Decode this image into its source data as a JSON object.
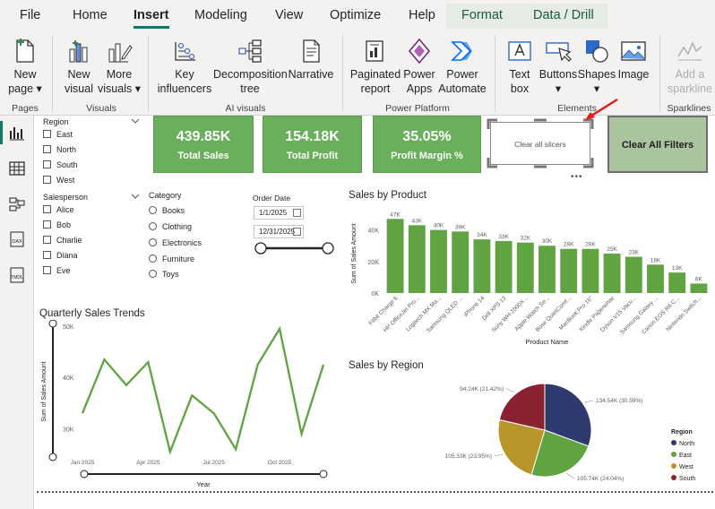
{
  "menu": {
    "items": [
      "File",
      "Home",
      "Insert",
      "Modeling",
      "View",
      "Optimize",
      "Help"
    ],
    "context": [
      "Format",
      "Data / Drill"
    ],
    "active": "Insert"
  },
  "ribbon": {
    "new_page": [
      "New",
      "page ▾"
    ],
    "pages_label": "Pages",
    "new_visual": [
      "New",
      "visual"
    ],
    "more_visuals": [
      "More",
      "visuals ▾"
    ],
    "visuals_label": "Visuals",
    "key_influencers": [
      "Key",
      "influencers"
    ],
    "decomposition_tree": [
      "Decomposition",
      "tree"
    ],
    "narrative": [
      "Narrative",
      ""
    ],
    "ai_label": "AI visuals",
    "paginated_report": [
      "Paginated",
      "report"
    ],
    "power_apps": [
      "Power",
      "Apps"
    ],
    "power_automate": [
      "Power",
      "Automate"
    ],
    "platform_label": "Power Platform",
    "text_box": [
      "Text",
      "box"
    ],
    "buttons": [
      "Buttons",
      "▾"
    ],
    "shapes": [
      "Shapes",
      "▾"
    ],
    "image": [
      "Image",
      ""
    ],
    "elements_label": "Elements",
    "sparkline": [
      "Add a",
      "sparkline"
    ],
    "sparklines_label": "Sparklines"
  },
  "rail": {
    "icons": [
      "report-view-icon",
      "table-view-icon",
      "model-view-icon",
      "dax-query-icon",
      "tmdl-view-icon"
    ],
    "dax": "DAX",
    "tmdl": "TMDL"
  },
  "slicers": {
    "region": {
      "title": "Region",
      "items": [
        "East",
        "North",
        "South",
        "West"
      ]
    },
    "salesperson": {
      "title": "Salesperson",
      "items": [
        "Alice",
        "Bob",
        "Charlie",
        "Diana",
        "Eve"
      ]
    },
    "category": {
      "title": "Category",
      "items": [
        "Books",
        "Clothing",
        "Electronics",
        "Furniture",
        "Toys"
      ]
    },
    "order_date": {
      "title": "Order Date",
      "start": "1/1/2025",
      "end": "12/31/2025"
    }
  },
  "kpis": [
    {
      "value": "439.85K",
      "label": "Total Sales"
    },
    {
      "value": "154.18K",
      "label": "Total Profit"
    },
    {
      "value": "35.05%",
      "label": "Profit Margin %"
    }
  ],
  "buttons": {
    "clear_slicers": "Clear all slicers",
    "clear_filters": "Clear All Filters",
    "more": "•••"
  },
  "colors": {
    "green": "#5fa441",
    "kpi": "#6aaf5c",
    "accent": "#117865"
  },
  "chart_data": [
    {
      "type": "bar",
      "title": "Sales by Product",
      "xlabel": "Product Name",
      "ylabel": "Sum of Sales Amount",
      "ylim": [
        0,
        50000
      ],
      "y_ticks": [
        "0K",
        "20K",
        "40K"
      ],
      "y_tick_values": [
        0,
        20000,
        40000
      ],
      "categories": [
        "Fitbit Charge 6",
        "HP OfficeJet Pro...",
        "Logitech MX Ma...",
        "Samsung QLED ...",
        "iPhone 14",
        "Dell XPS 13",
        "Sony WH-1000X...",
        "Apple Watch Se...",
        "Bose QuietComf...",
        "MacBook Pro 16\"",
        "Kindle Paperwhite",
        "Dyson V15 Vacu...",
        "Samsung Galaxy ...",
        "Canon EOS R6 C...",
        "Nintendo Switch..."
      ],
      "values": [
        47000,
        43000,
        40000,
        39000,
        34000,
        33000,
        32000,
        30000,
        28000,
        28000,
        25000,
        23000,
        18000,
        13000,
        6000
      ],
      "labels": [
        "47K",
        "43K",
        "40K",
        "39K",
        "34K",
        "33K",
        "32K",
        "30K",
        "28K",
        "28K",
        "25K",
        "23K",
        "18K",
        "13K",
        "6K"
      ]
    },
    {
      "type": "line",
      "title": "Quarterly Sales Trends",
      "xlabel": "Year",
      "ylabel": "Sum of Sales Amount",
      "ylim": [
        25000,
        50000
      ],
      "y_ticks": [
        "30K",
        "40K",
        "50K"
      ],
      "y_tick_values": [
        30000,
        40000,
        50000
      ],
      "x_ticks": [
        "Jan 2025",
        "Apr 2025",
        "Jul 2025",
        "Oct 2025"
      ],
      "x_tick_positions": [
        1,
        4,
        7,
        10
      ],
      "x": [
        0,
        1,
        2,
        3,
        4,
        5,
        6,
        7,
        8,
        9,
        10,
        11,
        12
      ],
      "values": [
        33000,
        43500,
        38500,
        43000,
        25500,
        36500,
        33000,
        26000,
        42500,
        49500,
        29000,
        42500,
        0
      ]
    },
    {
      "type": "pie",
      "title": "Sales by Region",
      "legend_title": "Region",
      "legend_position": "right",
      "slices": [
        {
          "name": "North",
          "value": 134.54,
          "label": "134.54K (30.59%)",
          "color": "#2e3a6e"
        },
        {
          "name": "East",
          "value": 105.74,
          "label": "105.74K (24.04%)",
          "color": "#5fa441"
        },
        {
          "name": "West",
          "value": 105.33,
          "label": "105.33K (23.95%)",
          "color": "#b8962a"
        },
        {
          "name": "South",
          "value": 94.24,
          "label": "94.24K (21.42%)",
          "color": "#8b2232"
        }
      ]
    }
  ]
}
